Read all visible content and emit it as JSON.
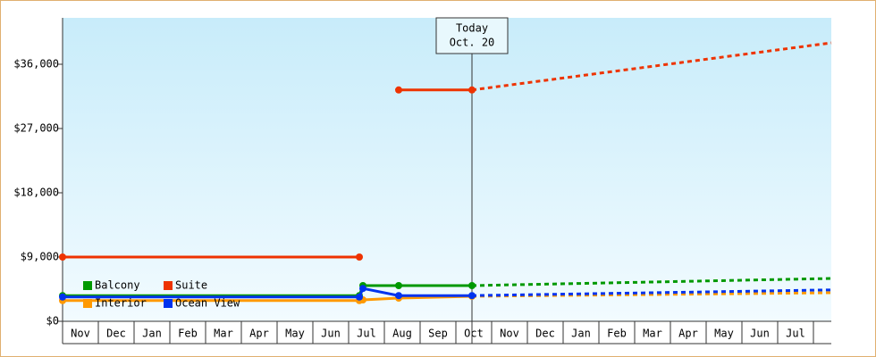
{
  "chart_data": {
    "type": "line",
    "categories": [
      "Nov",
      "Dec",
      "Jan",
      "Feb",
      "Mar",
      "Apr",
      "May",
      "Jun",
      "Jul",
      "Aug",
      "Sep",
      "Oct",
      "Nov",
      "Dec",
      "Jan",
      "Feb",
      "Mar",
      "Apr",
      "May",
      "Jun",
      "Jul"
    ],
    "xlim": [
      0,
      21.5
    ],
    "ylim": [
      0,
      42500
    ],
    "yticks": [
      {
        "value": 0,
        "label": "$0"
      },
      {
        "value": 9000,
        "label": "$9,000"
      },
      {
        "value": 18000,
        "label": "$18,000"
      },
      {
        "value": 27000,
        "label": "$27,000"
      },
      {
        "value": 36000,
        "label": "$36,000"
      }
    ],
    "annotation": {
      "x": 11.45,
      "lines": [
        "Today",
        "Oct. 20"
      ]
    },
    "series": [
      {
        "name": "Balcony",
        "color": "#009900",
        "x": [
          0,
          8.3,
          8.4,
          9.4,
          11.45
        ],
        "values": [
          3600,
          3600,
          5000,
          5000,
          5000
        ],
        "forecast": {
          "x": [
            11.45,
            21.5
          ],
          "values": [
            5000,
            6000
          ]
        }
      },
      {
        "name": "Suite",
        "color": "#ee3300",
        "x": [
          0,
          8.3,
          8.35,
          9.4,
          11.45
        ],
        "values": [
          9000,
          9000,
          null,
          32400,
          32400
        ],
        "forecast": {
          "x": [
            11.45,
            21.5
          ],
          "values": [
            32400,
            39000
          ]
        }
      },
      {
        "name": "Interior",
        "color": "#ff9900",
        "x": [
          0,
          8.3,
          8.4,
          9.4,
          11.45
        ],
        "values": [
          2900,
          2900,
          3000,
          3250,
          3500
        ],
        "forecast": {
          "x": [
            11.45,
            21.5
          ],
          "values": [
            3500,
            4000
          ]
        }
      },
      {
        "name": "Ocean View",
        "color": "#0033ee",
        "x": [
          0,
          8.3,
          8.4,
          9.4,
          11.45
        ],
        "values": [
          3400,
          3400,
          4600,
          3600,
          3600
        ],
        "forecast": {
          "x": [
            11.45,
            21.5
          ],
          "values": [
            3600,
            4400
          ]
        }
      }
    ]
  }
}
